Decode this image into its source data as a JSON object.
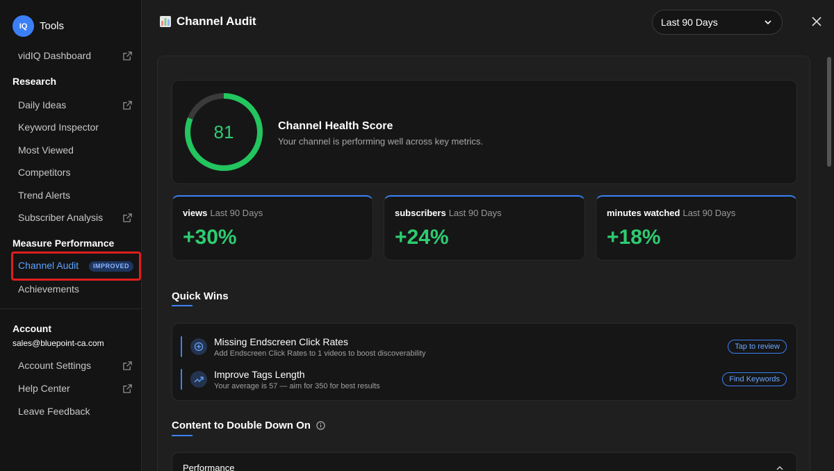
{
  "sidebar": {
    "brand_label": "Tools",
    "logo_text": "IQ",
    "dashboard_label": "vidIQ Dashboard",
    "research": {
      "title": "Research",
      "items": [
        "Daily Ideas",
        "Keyword Inspector",
        "Most Viewed",
        "Competitors",
        "Trend Alerts",
        "Subscriber Analysis"
      ]
    },
    "measure": {
      "title": "Measure Performance",
      "active_label": "Channel Audit",
      "active_badge": "IMPROVED",
      "achievements_label": "Achievements"
    },
    "account": {
      "title": "Account",
      "email": "sales@bluepoint-ca.com",
      "items": [
        "Account Settings",
        "Help Center",
        "Leave Feedback"
      ]
    }
  },
  "header": {
    "title": "Channel Audit",
    "date_range": "Last 90 Days"
  },
  "health": {
    "score": "81",
    "score_fraction": 0.81,
    "title": "Channel Health Score",
    "subtitle": "Your channel is performing well across key metrics."
  },
  "stats": [
    {
      "label": "views",
      "period": "Last 90 Days",
      "value": "+30%"
    },
    {
      "label": "subscribers",
      "period": "Last 90 Days",
      "value": "+24%"
    },
    {
      "label": "minutes watched",
      "period": "Last 90 Days",
      "value": "+18%"
    }
  ],
  "quick_wins": {
    "heading": "Quick Wins",
    "items": [
      {
        "title": "Missing Endscreen Click Rates",
        "desc": "Add Endscreen Click Rates to 1 videos to boost discoverability",
        "action": "Tap to review"
      },
      {
        "title": "Improve Tags Length",
        "desc": "Your average is 57 — aim for 350 for best results",
        "action": "Find Keywords"
      }
    ]
  },
  "content": {
    "heading": "Content to Double Down On",
    "performance_label": "Performance"
  },
  "colors": {
    "accent": "#3b82f6",
    "positive": "#2ecc71",
    "highlight_box": "#e01e1e"
  }
}
